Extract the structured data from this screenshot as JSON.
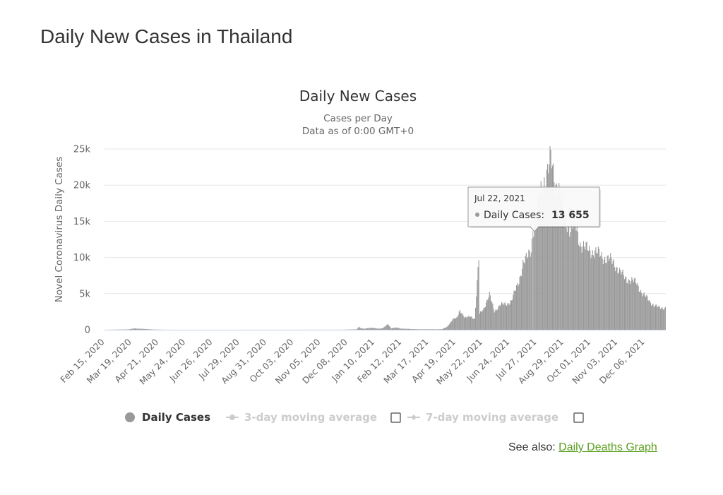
{
  "page": {
    "title": "Daily New Cases in Thailand",
    "see_also_label": "See also:",
    "see_also_link": "Daily Deaths Graph"
  },
  "colors": {
    "bar": "#999999",
    "grid": "#e6e6e6",
    "legend_inactive": "#cccccc",
    "link": "#5a9f1f"
  },
  "chart_data": {
    "type": "bar",
    "title": "Daily New Cases",
    "subtitle": [
      "Cases per Day",
      "Data as of 0:00 GMT+0"
    ],
    "ylabel": "Novel Coronavirus Daily Cases",
    "xlabel": "",
    "ylim": [
      0,
      25000
    ],
    "yticks": [
      0,
      5000,
      10000,
      15000,
      20000,
      25000
    ],
    "ytick_labels": [
      "0",
      "5k",
      "10k",
      "15k",
      "20k",
      "25k"
    ],
    "x_start": "2020-02-15",
    "x_end": "2021-12-31",
    "xtick_labels": [
      "Feb 15, 2020",
      "Mar 19, 2020",
      "Apr 21, 2020",
      "May 24, 2020",
      "Jun 26, 2020",
      "Jul 29, 2020",
      "Aug 31, 2020",
      "Oct 03, 2020",
      "Nov 05, 2020",
      "Dec 08, 2020",
      "Jan 10, 2021",
      "Feb 12, 2021",
      "Mar 17, 2021",
      "Apr 19, 2021",
      "May 22, 2021",
      "Jun 24, 2021",
      "Jul 27, 2021",
      "Aug 29, 2021",
      "Oct 01, 2021",
      "Nov 03, 2021",
      "Dec 06, 2021"
    ],
    "series": [
      {
        "name": "Daily Cases",
        "points": [
          [
            "2020-02-15",
            0
          ],
          [
            "2020-03-15",
            50
          ],
          [
            "2020-03-22",
            188
          ],
          [
            "2020-03-29",
            140
          ],
          [
            "2020-04-05",
            100
          ],
          [
            "2020-04-15",
            30
          ],
          [
            "2020-05-01",
            5
          ],
          [
            "2020-06-01",
            3
          ],
          [
            "2020-09-01",
            5
          ],
          [
            "2020-12-01",
            10
          ],
          [
            "2020-12-19",
            60
          ],
          [
            "2020-12-21",
            380
          ],
          [
            "2020-12-24",
            200
          ],
          [
            "2020-12-28",
            150
          ],
          [
            "2021-01-02",
            230
          ],
          [
            "2021-01-08",
            250
          ],
          [
            "2021-01-15",
            150
          ],
          [
            "2021-01-20",
            220
          ],
          [
            "2021-01-26",
            820
          ],
          [
            "2021-01-30",
            200
          ],
          [
            "2021-02-05",
            300
          ],
          [
            "2021-02-12",
            150
          ],
          [
            "2021-02-20",
            120
          ],
          [
            "2021-02-28",
            80
          ],
          [
            "2021-03-05",
            60
          ],
          [
            "2021-03-15",
            70
          ],
          [
            "2021-03-25",
            60
          ],
          [
            "2021-04-02",
            80
          ],
          [
            "2021-04-08",
            400
          ],
          [
            "2021-04-12",
            960
          ],
          [
            "2021-04-15",
            1400
          ],
          [
            "2021-04-20",
            1600
          ],
          [
            "2021-04-24",
            2800
          ],
          [
            "2021-04-30",
            1600
          ],
          [
            "2021-05-07",
            1900
          ],
          [
            "2021-05-12",
            1500
          ],
          [
            "2021-05-17",
            9600
          ],
          [
            "2021-05-18",
            2200
          ],
          [
            "2021-05-23",
            3000
          ],
          [
            "2021-05-30",
            4800
          ],
          [
            "2021-06-05",
            2600
          ],
          [
            "2021-06-12",
            3400
          ],
          [
            "2021-06-20",
            3600
          ],
          [
            "2021-06-26",
            4000
          ],
          [
            "2021-07-01",
            5500
          ],
          [
            "2021-07-05",
            6800
          ],
          [
            "2021-07-10",
            9200
          ],
          [
            "2021-07-15",
            9800
          ],
          [
            "2021-07-20",
            11300
          ],
          [
            "2021-07-22",
            13655
          ],
          [
            "2021-07-25",
            15300
          ],
          [
            "2021-07-31",
            18900
          ],
          [
            "2021-08-05",
            20900
          ],
          [
            "2021-08-10",
            22100
          ],
          [
            "2021-08-13",
            23400
          ],
          [
            "2021-08-18",
            20600
          ],
          [
            "2021-08-22",
            19900
          ],
          [
            "2021-08-27",
            17500
          ],
          [
            "2021-09-01",
            15000
          ],
          [
            "2021-09-06",
            14000
          ],
          [
            "2021-09-12",
            14500
          ],
          [
            "2021-09-18",
            12000
          ],
          [
            "2021-09-24",
            11200
          ],
          [
            "2021-10-01",
            11000
          ],
          [
            "2021-10-08",
            10600
          ],
          [
            "2021-10-15",
            10200
          ],
          [
            "2021-10-22",
            9700
          ],
          [
            "2021-10-29",
            9400
          ],
          [
            "2021-11-05",
            8000
          ],
          [
            "2021-11-12",
            7200
          ],
          [
            "2021-11-19",
            6800
          ],
          [
            "2021-11-26",
            6500
          ],
          [
            "2021-12-03",
            5000
          ],
          [
            "2021-12-10",
            4200
          ],
          [
            "2021-12-17",
            3400
          ],
          [
            "2021-12-24",
            3000
          ],
          [
            "2021-12-31",
            3100
          ]
        ]
      }
    ],
    "tooltip": {
      "date": "Jul 22, 2021",
      "label": "Daily Cases:",
      "value": "13 655",
      "x": "2021-07-22"
    },
    "legend": [
      {
        "name": "Daily Cases",
        "active": true,
        "marker": "circle"
      },
      {
        "name": "3-day moving average",
        "active": false,
        "marker": "line-circle",
        "checkbox": true
      },
      {
        "name": "7-day moving average",
        "active": false,
        "marker": "line-diamond",
        "checkbox": true
      }
    ],
    "legend_placement": "bottom",
    "grid": true
  }
}
